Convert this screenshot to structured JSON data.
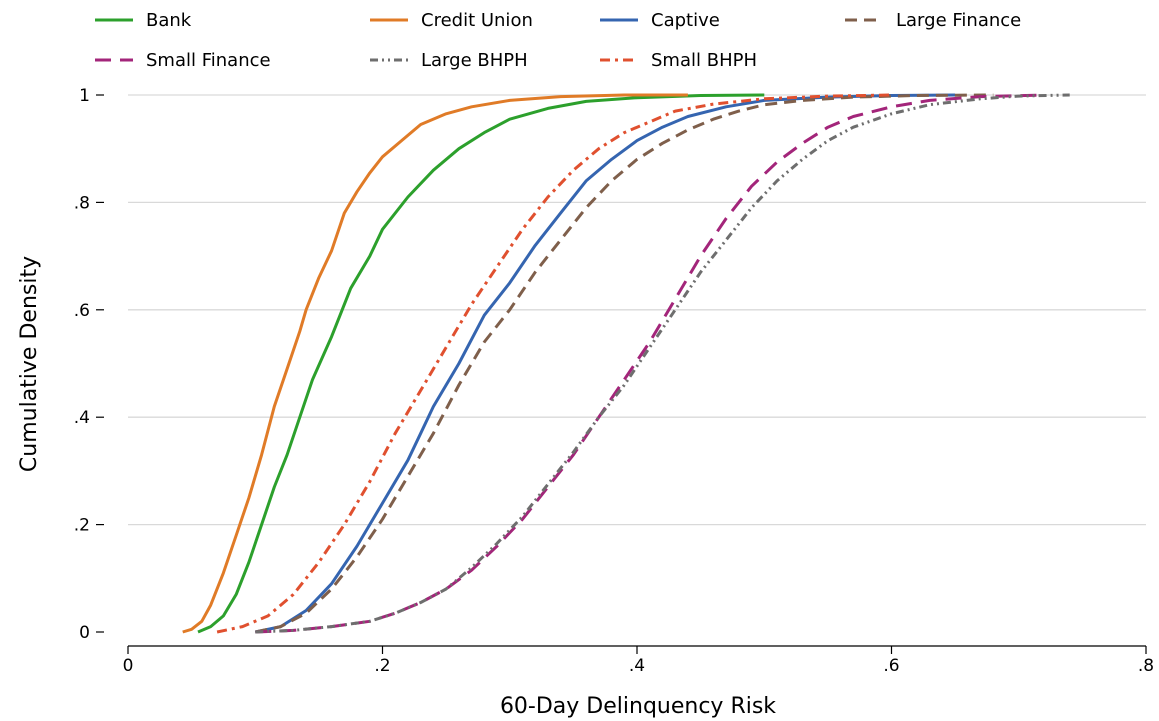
{
  "chart_data": {
    "type": "line",
    "title": "",
    "xlabel": "60-Day Delinquency Risk",
    "ylabel": "Cumulative Density",
    "xlim": [
      0,
      0.8
    ],
    "ylim": [
      0,
      1
    ],
    "xticks": [
      0,
      0.2,
      0.4,
      0.6,
      0.8
    ],
    "xtick_labels": [
      "0",
      ".2",
      ".4",
      ".6",
      ".8"
    ],
    "yticks": [
      0,
      0.2,
      0.4,
      0.6,
      0.8,
      1
    ],
    "ytick_labels": [
      "0",
      ".2",
      ".4",
      ".6",
      ".8",
      "1"
    ],
    "grid": "horizontal",
    "legend_position": "top",
    "series": [
      {
        "name": "Bank",
        "color": "#2ca02c",
        "dash": "solid",
        "points": [
          [
            0.055,
            0
          ],
          [
            0.065,
            0.01
          ],
          [
            0.075,
            0.03
          ],
          [
            0.085,
            0.07
          ],
          [
            0.095,
            0.13
          ],
          [
            0.105,
            0.2
          ],
          [
            0.115,
            0.27
          ],
          [
            0.125,
            0.33
          ],
          [
            0.135,
            0.4
          ],
          [
            0.145,
            0.47
          ],
          [
            0.16,
            0.55
          ],
          [
            0.175,
            0.64
          ],
          [
            0.19,
            0.7
          ],
          [
            0.2,
            0.75
          ],
          [
            0.22,
            0.81
          ],
          [
            0.24,
            0.86
          ],
          [
            0.26,
            0.9
          ],
          [
            0.28,
            0.93
          ],
          [
            0.3,
            0.955
          ],
          [
            0.33,
            0.975
          ],
          [
            0.36,
            0.988
          ],
          [
            0.4,
            0.995
          ],
          [
            0.45,
            0.999
          ],
          [
            0.5,
            1
          ]
        ]
      },
      {
        "name": "Credit Union",
        "color": "#e07b27",
        "dash": "solid",
        "points": [
          [
            0.043,
            0
          ],
          [
            0.05,
            0.005
          ],
          [
            0.058,
            0.02
          ],
          [
            0.065,
            0.05
          ],
          [
            0.075,
            0.11
          ],
          [
            0.085,
            0.18
          ],
          [
            0.095,
            0.25
          ],
          [
            0.105,
            0.33
          ],
          [
            0.115,
            0.42
          ],
          [
            0.125,
            0.49
          ],
          [
            0.135,
            0.56
          ],
          [
            0.14,
            0.6
          ],
          [
            0.15,
            0.66
          ],
          [
            0.16,
            0.71
          ],
          [
            0.17,
            0.78
          ],
          [
            0.18,
            0.82
          ],
          [
            0.19,
            0.855
          ],
          [
            0.2,
            0.885
          ],
          [
            0.215,
            0.915
          ],
          [
            0.23,
            0.945
          ],
          [
            0.25,
            0.965
          ],
          [
            0.27,
            0.978
          ],
          [
            0.3,
            0.99
          ],
          [
            0.34,
            0.997
          ],
          [
            0.39,
            1
          ],
          [
            0.44,
            1
          ]
        ]
      },
      {
        "name": "Captive",
        "color": "#3565b0",
        "dash": "solid",
        "points": [
          [
            0.1,
            0
          ],
          [
            0.12,
            0.01
          ],
          [
            0.14,
            0.04
          ],
          [
            0.16,
            0.09
          ],
          [
            0.18,
            0.16
          ],
          [
            0.2,
            0.24
          ],
          [
            0.22,
            0.32
          ],
          [
            0.23,
            0.37
          ],
          [
            0.24,
            0.42
          ],
          [
            0.26,
            0.5
          ],
          [
            0.28,
            0.59
          ],
          [
            0.3,
            0.65
          ],
          [
            0.32,
            0.72
          ],
          [
            0.34,
            0.78
          ],
          [
            0.36,
            0.84
          ],
          [
            0.38,
            0.88
          ],
          [
            0.4,
            0.915
          ],
          [
            0.42,
            0.94
          ],
          [
            0.44,
            0.96
          ],
          [
            0.47,
            0.978
          ],
          [
            0.5,
            0.99
          ],
          [
            0.55,
            0.996
          ],
          [
            0.6,
            0.999
          ],
          [
            0.65,
            1
          ]
        ]
      },
      {
        "name": "Large Finance",
        "color": "#7f5f4b",
        "dash": "dashed",
        "points": [
          [
            0.1,
            0
          ],
          [
            0.12,
            0.01
          ],
          [
            0.14,
            0.035
          ],
          [
            0.16,
            0.08
          ],
          [
            0.18,
            0.14
          ],
          [
            0.2,
            0.21
          ],
          [
            0.22,
            0.29
          ],
          [
            0.24,
            0.37
          ],
          [
            0.26,
            0.46
          ],
          [
            0.28,
            0.54
          ],
          [
            0.3,
            0.6
          ],
          [
            0.32,
            0.67
          ],
          [
            0.34,
            0.73
          ],
          [
            0.36,
            0.79
          ],
          [
            0.38,
            0.84
          ],
          [
            0.4,
            0.88
          ],
          [
            0.42,
            0.91
          ],
          [
            0.44,
            0.935
          ],
          [
            0.46,
            0.955
          ],
          [
            0.48,
            0.97
          ],
          [
            0.5,
            0.982
          ],
          [
            0.53,
            0.99
          ],
          [
            0.57,
            0.996
          ],
          [
            0.62,
            0.999
          ],
          [
            0.68,
            1
          ]
        ]
      },
      {
        "name": "Small Finance",
        "color": "#a3257a",
        "dash": "longdash",
        "points": [
          [
            0.1,
            0
          ],
          [
            0.13,
            0.003
          ],
          [
            0.16,
            0.01
          ],
          [
            0.19,
            0.02
          ],
          [
            0.21,
            0.035
          ],
          [
            0.23,
            0.055
          ],
          [
            0.25,
            0.08
          ],
          [
            0.27,
            0.115
          ],
          [
            0.29,
            0.16
          ],
          [
            0.31,
            0.21
          ],
          [
            0.33,
            0.27
          ],
          [
            0.35,
            0.33
          ],
          [
            0.37,
            0.4
          ],
          [
            0.39,
            0.47
          ],
          [
            0.41,
            0.54
          ],
          [
            0.43,
            0.62
          ],
          [
            0.45,
            0.7
          ],
          [
            0.47,
            0.77
          ],
          [
            0.49,
            0.83
          ],
          [
            0.51,
            0.875
          ],
          [
            0.53,
            0.91
          ],
          [
            0.55,
            0.94
          ],
          [
            0.57,
            0.96
          ],
          [
            0.6,
            0.978
          ],
          [
            0.63,
            0.99
          ],
          [
            0.67,
            0.997
          ],
          [
            0.72,
            1
          ]
        ]
      },
      {
        "name": "Large BHPH",
        "color": "#6e6e6e",
        "dash": "dashdotdot",
        "points": [
          [
            0.1,
            0
          ],
          [
            0.13,
            0.003
          ],
          [
            0.16,
            0.01
          ],
          [
            0.19,
            0.02
          ],
          [
            0.21,
            0.035
          ],
          [
            0.23,
            0.055
          ],
          [
            0.25,
            0.08
          ],
          [
            0.27,
            0.12
          ],
          [
            0.29,
            0.165
          ],
          [
            0.31,
            0.215
          ],
          [
            0.33,
            0.275
          ],
          [
            0.35,
            0.335
          ],
          [
            0.37,
            0.4
          ],
          [
            0.39,
            0.46
          ],
          [
            0.41,
            0.53
          ],
          [
            0.43,
            0.6
          ],
          [
            0.45,
            0.67
          ],
          [
            0.47,
            0.73
          ],
          [
            0.49,
            0.79
          ],
          [
            0.51,
            0.84
          ],
          [
            0.53,
            0.88
          ],
          [
            0.55,
            0.915
          ],
          [
            0.57,
            0.94
          ],
          [
            0.6,
            0.965
          ],
          [
            0.63,
            0.982
          ],
          [
            0.67,
            0.993
          ],
          [
            0.7,
            0.998
          ],
          [
            0.74,
            1
          ]
        ]
      },
      {
        "name": "Small BHPH",
        "color": "#e0502f",
        "dash": "dashdot",
        "points": [
          [
            0.07,
            0
          ],
          [
            0.09,
            0.01
          ],
          [
            0.11,
            0.03
          ],
          [
            0.13,
            0.07
          ],
          [
            0.15,
            0.13
          ],
          [
            0.17,
            0.2
          ],
          [
            0.19,
            0.28
          ],
          [
            0.21,
            0.37
          ],
          [
            0.23,
            0.45
          ],
          [
            0.25,
            0.53
          ],
          [
            0.27,
            0.61
          ],
          [
            0.29,
            0.68
          ],
          [
            0.31,
            0.75
          ],
          [
            0.33,
            0.81
          ],
          [
            0.35,
            0.86
          ],
          [
            0.37,
            0.9
          ],
          [
            0.39,
            0.93
          ],
          [
            0.41,
            0.95
          ],
          [
            0.43,
            0.97
          ],
          [
            0.46,
            0.983
          ],
          [
            0.5,
            0.993
          ],
          [
            0.55,
            0.998
          ],
          [
            0.6,
            1
          ]
        ]
      }
    ]
  }
}
